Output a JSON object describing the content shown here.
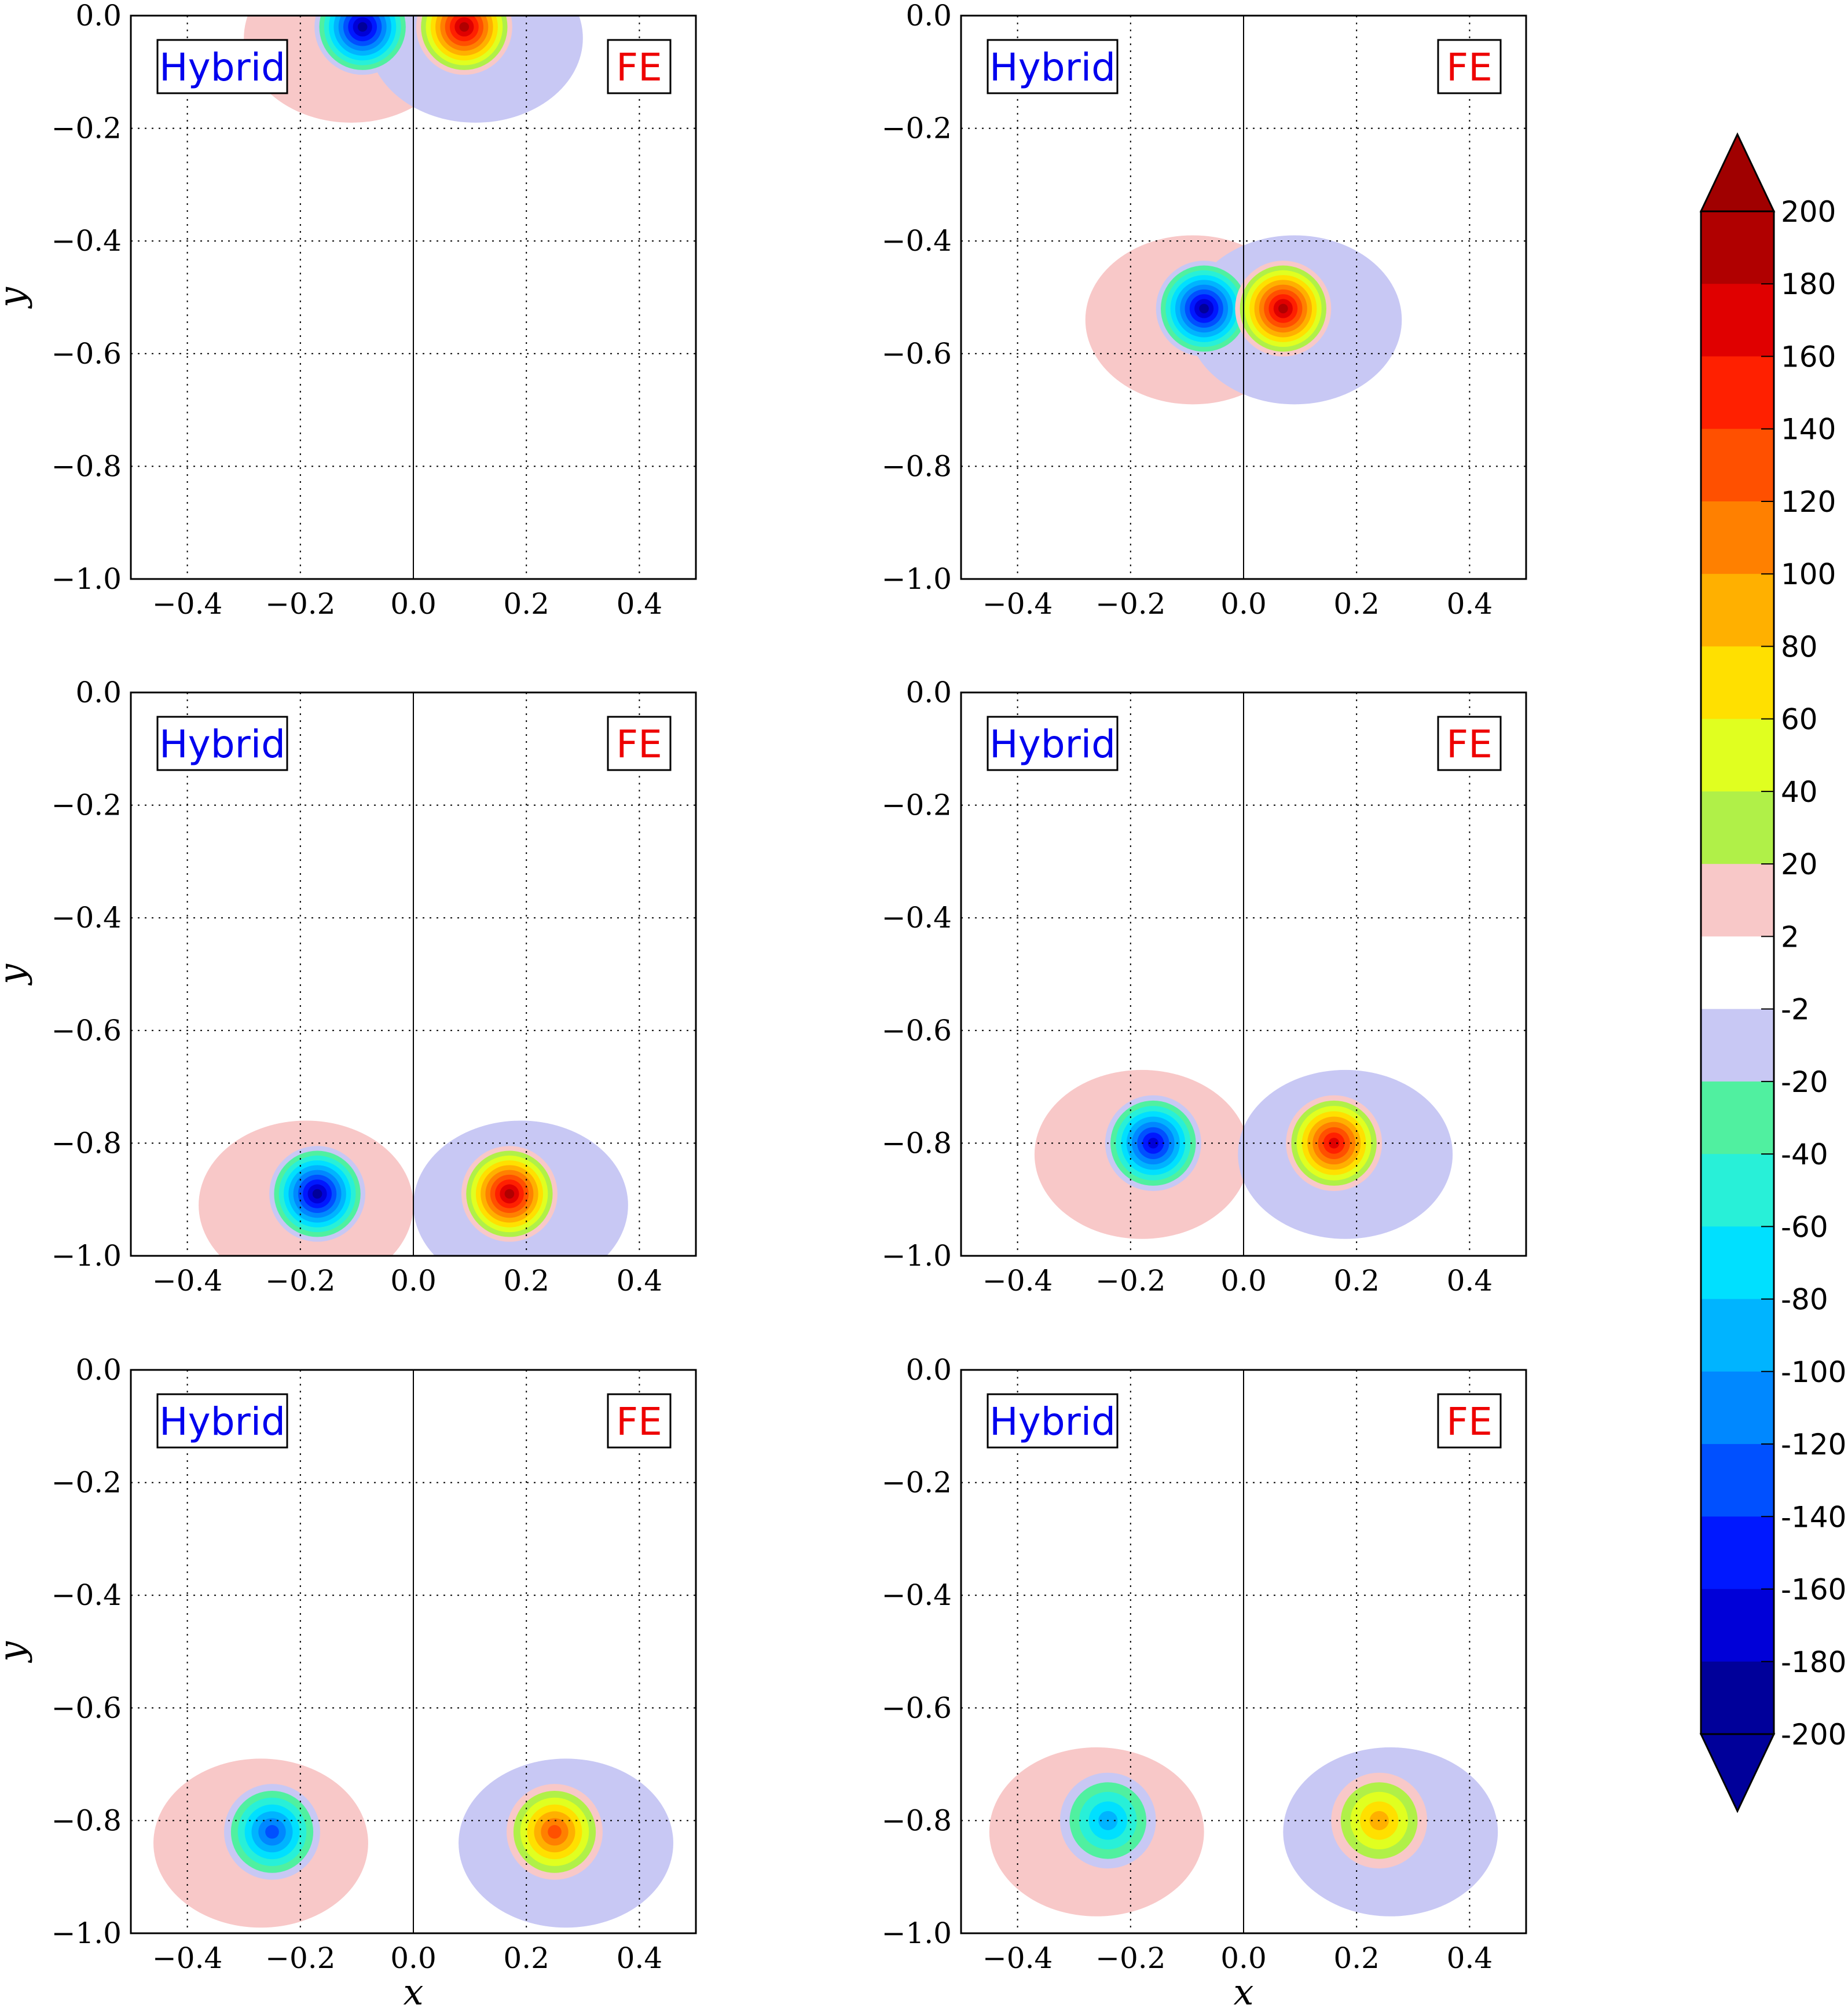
{
  "chart_data": {
    "type": "heatmap",
    "description_free": true,
    "xlim": [
      -0.5,
      0.5
    ],
    "ylim": [
      -1.0,
      0.0
    ],
    "x_ticks": [
      -0.4,
      -0.2,
      0.0,
      0.2,
      0.4
    ],
    "y_ticks": [
      0.0,
      -0.2,
      -0.4,
      -0.6,
      -0.8,
      -1.0
    ],
    "x_tick_labels": [
      "−0.4",
      "−0.2",
      "0.0",
      "0.2",
      "0.4"
    ],
    "y_tick_labels": [
      "0.0",
      "−0.2",
      "−0.4",
      "−0.6",
      "−0.8",
      "−1.0"
    ],
    "xlabel": "x",
    "ylabel": "y",
    "left_label": "Hybrid",
    "right_label": "FE",
    "grid": true,
    "panels": [
      {
        "vortex_y": -0.02,
        "vortex_dx": 0.09,
        "peak": 200
      },
      {
        "vortex_y": -0.52,
        "vortex_dx": 0.07,
        "peak": 190
      },
      {
        "vortex_y": -0.89,
        "vortex_dx": 0.17,
        "peak": 190
      },
      {
        "vortex_y": -0.8,
        "vortex_dx": 0.16,
        "peak": 160
      },
      {
        "vortex_y": -0.82,
        "vortex_dx": 0.25,
        "peak": 110
      },
      {
        "vortex_y": -0.8,
        "vortex_dx": 0.24,
        "peak": 70
      }
    ],
    "colorbar": {
      "levels": [
        -200,
        -180,
        -160,
        -140,
        -120,
        -100,
        -80,
        -60,
        -40,
        -20,
        -2,
        2,
        20,
        40,
        60,
        80,
        100,
        120,
        140,
        160,
        180,
        200
      ],
      "tick_labels": [
        "200",
        "180",
        "160",
        "140",
        "120",
        "100",
        "80",
        "60",
        "40",
        "20",
        "2",
        "-2",
        "-20",
        "-40",
        "-60",
        "-80",
        "-100",
        "-120",
        "-140",
        "-160",
        "-180",
        "-200"
      ],
      "colors": [
        "#00009a",
        "#0000d8",
        "#0018ff",
        "#0050ff",
        "#0088ff",
        "#00b4ff",
        "#00e0ff",
        "#28f0d8",
        "#50f0a0",
        "#c8c8f4",
        "#ffffff",
        "#f8c8c8",
        "#b0f048",
        "#e0ff20",
        "#ffe000",
        "#ffb000",
        "#ff8000",
        "#ff5000",
        "#ff2000",
        "#e00000",
        "#b00000"
      ],
      "extend_colors": {
        "low": "#00009a",
        "high": "#a00000"
      }
    }
  }
}
